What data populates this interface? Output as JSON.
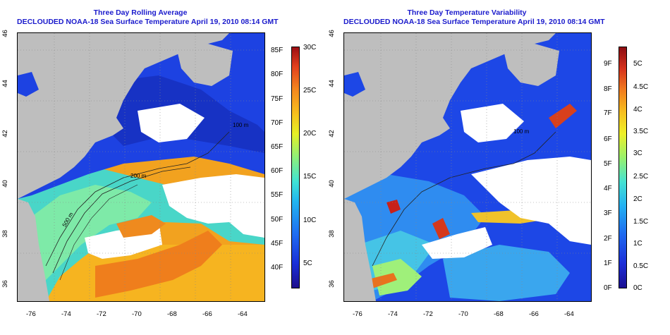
{
  "left_panel": {
    "title_line1": "Three Day Rolling Average",
    "title_line2": "DECLOUDED NOAA-18 Sea Surface Temperature April 19, 2010 08:14 GMT",
    "x_ticks": [
      "-76",
      "-74",
      "-72",
      "-70",
      "-68",
      "-66",
      "-64"
    ],
    "y_ticks": [
      "46",
      "44",
      "42",
      "40",
      "38",
      "36"
    ],
    "contour_labels": [
      "500 m",
      "200 m",
      "100 m"
    ],
    "colorbar_f": [
      "85F",
      "80F",
      "75F",
      "70F",
      "65F",
      "60F",
      "55F",
      "50F",
      "45F",
      "40F"
    ],
    "colorbar_c": [
      "30C",
      "25C",
      "20C",
      "15C",
      "10C",
      "5C"
    ]
  },
  "right_panel": {
    "title_line1": "Three Day Temperature Variability",
    "title_line2": "DECLOUDED NOAA-18 Sea Surface Temperature April 19, 2010 08:14 GMT",
    "x_ticks": [
      "-76",
      "-74",
      "-72",
      "-70",
      "-68",
      "-66",
      "-64"
    ],
    "y_ticks": [
      "46",
      "44",
      "42",
      "40",
      "38",
      "36"
    ],
    "contour_labels": [
      "100 m"
    ],
    "colorbar_f": [
      "9F",
      "8F",
      "7F",
      "6F",
      "5F",
      "4F",
      "3F",
      "2F",
      "1F",
      "0F"
    ],
    "colorbar_c": [
      "5C",
      "4.5C",
      "4C",
      "3.5C",
      "3C",
      "2.5C",
      "2C",
      "1.5C",
      "1C",
      "0.5C",
      "0C"
    ]
  },
  "colors": {
    "title": "#1a1acc",
    "land": "#bebebe",
    "cold": "#1c3ee0",
    "warm": "#f08a1e",
    "missing": "#ffffff"
  }
}
